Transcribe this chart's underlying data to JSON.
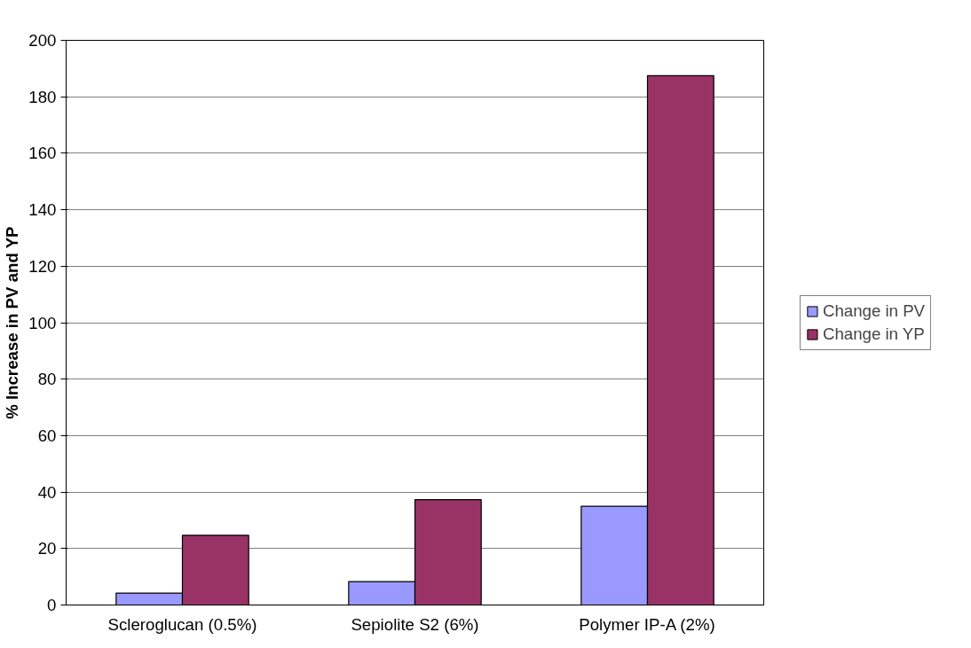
{
  "chart_data": {
    "type": "bar",
    "ylabel": "% Increase in PV and YP",
    "categories": [
      "Scleroglucan (0.5%)",
      "Sepiolite S2 (6%)",
      "Polymer IP-A (2%)"
    ],
    "series": [
      {
        "name": "Change in PV",
        "color": "#9999ff",
        "values": [
          4.2,
          8.3,
          35
        ]
      },
      {
        "name": "Change in YP",
        "color": "#993366",
        "values": [
          24.7,
          37.3,
          187.5
        ]
      }
    ],
    "ylim": [
      0,
      200
    ],
    "yticks": [
      0,
      20,
      40,
      60,
      80,
      100,
      120,
      140,
      160,
      180,
      200
    ],
    "grid": "y",
    "legend": "right"
  }
}
